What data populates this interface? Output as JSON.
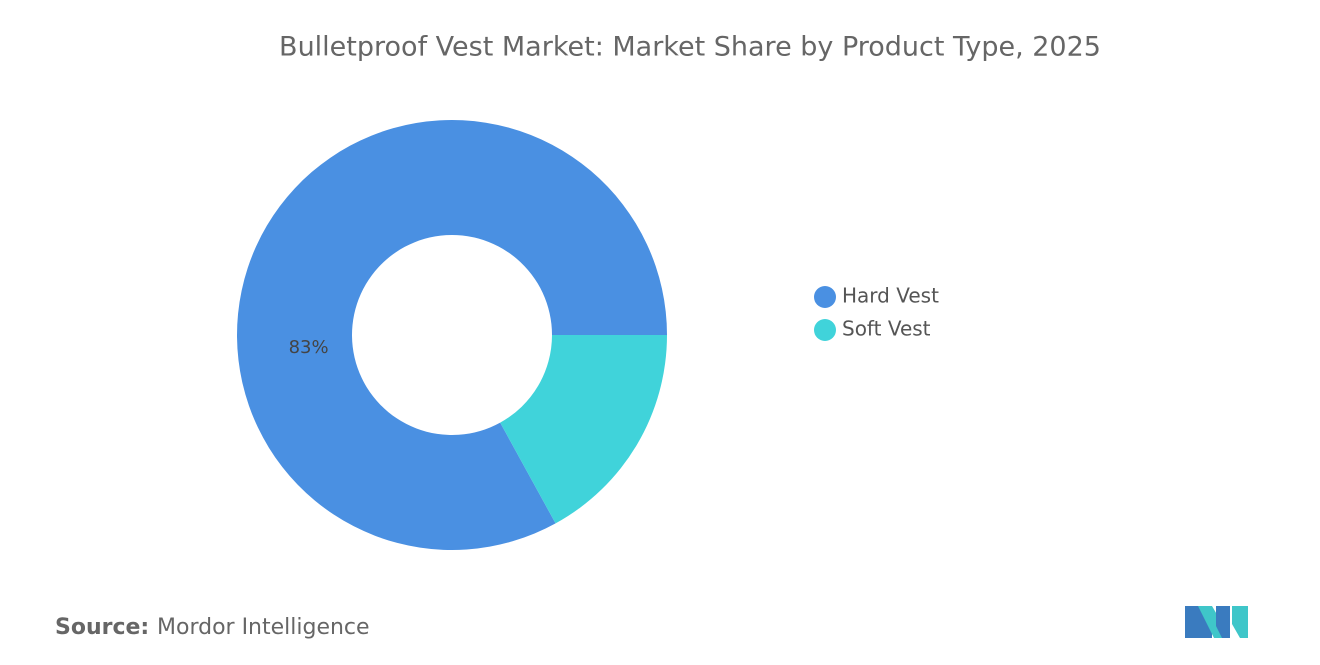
{
  "chart_data": {
    "type": "donut",
    "title": "Bulletproof Vest Market: Market Share by Product Type, 2025",
    "categories": [
      "Hard Vest",
      "Soft Vest"
    ],
    "values": [
      83,
      17
    ],
    "value_labels": [
      "83%",
      null
    ],
    "colors": [
      "#4a90e2",
      "#40d3da"
    ],
    "legend": "right"
  },
  "source": {
    "label": "Source:",
    "text": "Mordor Intelligence"
  }
}
